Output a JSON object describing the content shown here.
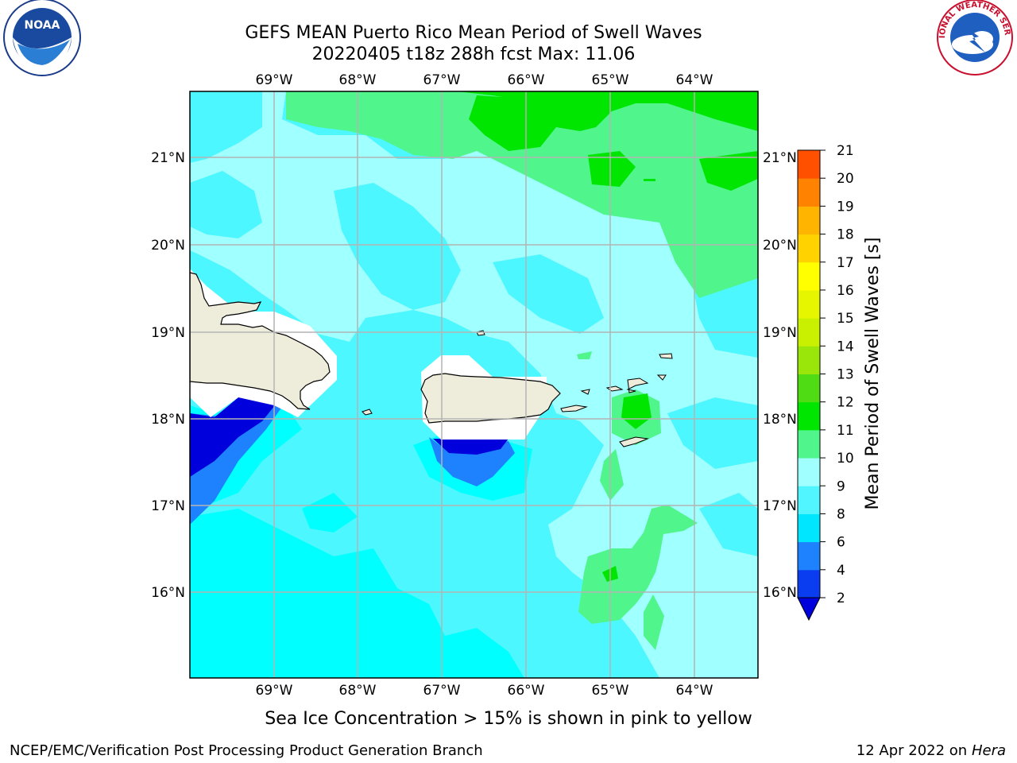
{
  "header": {
    "title_line1": "GEFS MEAN Puerto Rico Mean Period of Swell Waves",
    "title_line2": "20220405 t18z 288h fcst   Max: 11.06"
  },
  "logos": {
    "left": "NOAA",
    "right": "NATIONAL WEATHER SERVICE",
    "left_ring_text": "NATIONAL OCEANIC AND ATMOSPHERIC ADMINISTRATION · U.S. DEPARTMENT OF COMMERCE"
  },
  "map": {
    "lon_ticks": [
      "69°W",
      "68°W",
      "67°W",
      "66°W",
      "65°W",
      "64°W"
    ],
    "lat_ticks": [
      "21°N",
      "20°N",
      "19°N",
      "18°N",
      "17°N",
      "16°N"
    ]
  },
  "colorbar": {
    "label": "Mean Period of Swell Waves [s]",
    "ticks": [
      "2",
      "4",
      "6",
      "8",
      "9",
      "10",
      "11",
      "12",
      "13",
      "14",
      "15",
      "16",
      "17",
      "18",
      "19",
      "20",
      "21"
    ],
    "colors": [
      "#0a3cf0",
      "#1e82ff",
      "#00e6ff",
      "#50f5ff",
      "#a0ffff",
      "#50f58c",
      "#00e600",
      "#50dc14",
      "#9be60a",
      "#c8f000",
      "#e6f500",
      "#ffff00",
      "#ffd200",
      "#ffb400",
      "#ff8200",
      "#ff5000",
      "#ff1e00",
      "#ff0000"
    ],
    "under_color": "#0000dc"
  },
  "footer": {
    "note": "Sea Ice Concentration > 15% is shown in pink to yellow",
    "credit": "NCEP/EMC/Verification Post Processing Product Generation Branch",
    "date": "12 Apr 2022 on ",
    "machine": "Hera"
  },
  "palette": {
    "land": "#eeecdb",
    "grid": "#b4b4b4",
    "deep_blue": "#0000dc",
    "blue": "#1e82ff",
    "cyan": "#00ffff",
    "mid_cyan": "#4df7ff",
    "light_cyan": "#a0ffff",
    "mint": "#50f58c",
    "green": "#00e600"
  }
}
